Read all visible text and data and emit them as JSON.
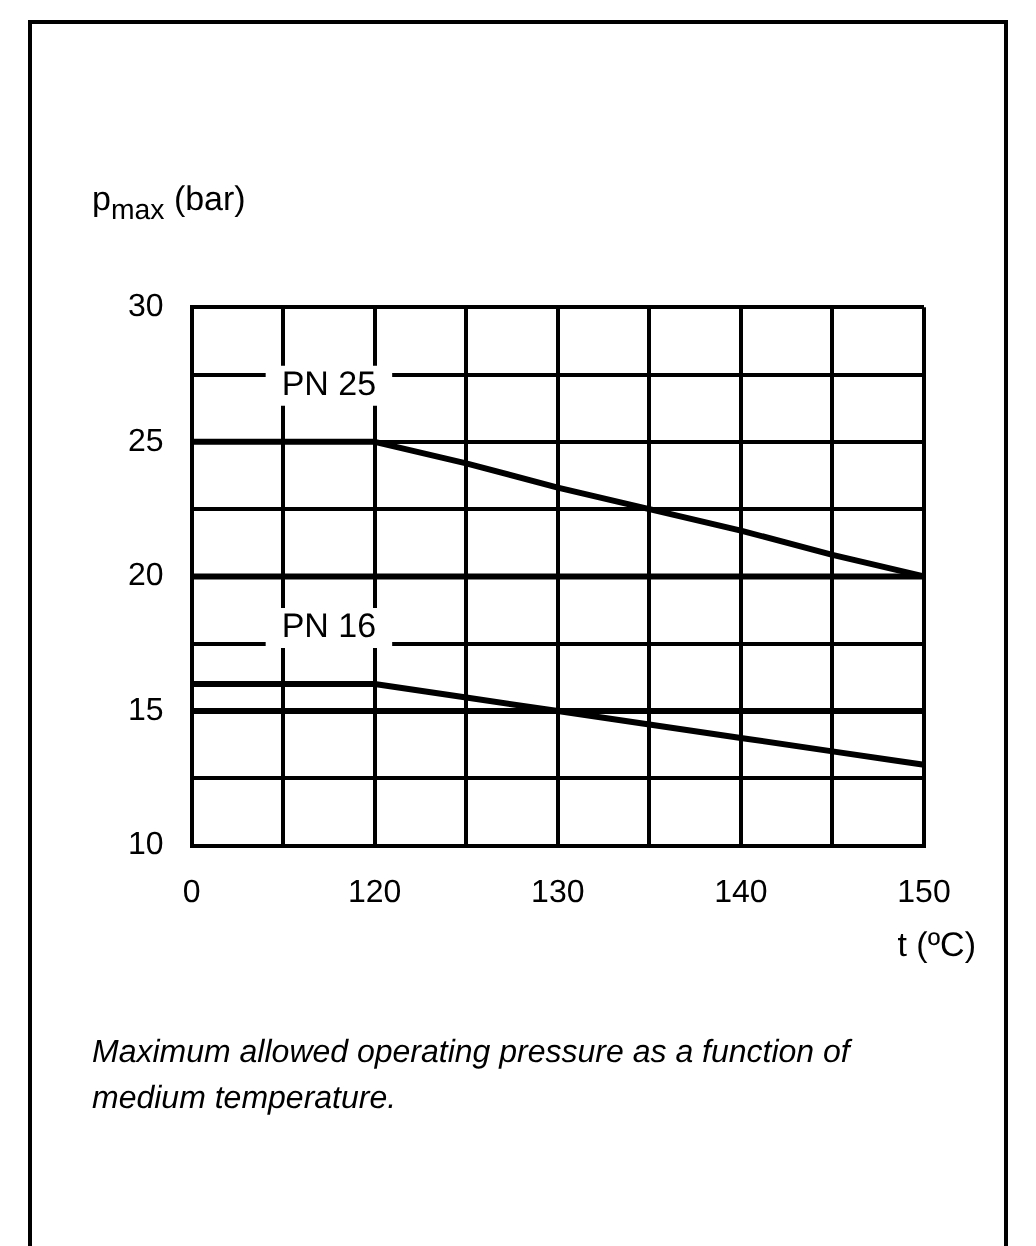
{
  "chart_data": {
    "type": "line",
    "ylabel": "p$_{max}$ (bar)",
    "xlabel": "t (ºC)",
    "categories": [
      "0",
      null,
      "120",
      null,
      "130",
      null,
      "140",
      null,
      "150"
    ],
    "series": [
      {
        "name": "PN 25",
        "color": "#000000",
        "values": [
          25,
          25,
          25,
          24.2,
          23.3,
          22.5,
          21.7,
          20.8,
          20
        ]
      },
      {
        "name": "PN 16",
        "color": "#000000",
        "values": [
          16,
          16,
          16,
          15.5,
          15,
          14.5,
          14,
          13.5,
          13
        ]
      },
      {
        "color": "#000000",
        "values": [
          20,
          20,
          20,
          20,
          20,
          20,
          20,
          20,
          20
        ]
      },
      {
        "color": "#000000",
        "values": [
          15,
          15,
          15,
          15,
          15,
          15,
          15,
          15,
          15
        ]
      }
    ],
    "ylim": [
      10,
      30
    ],
    "yticks": [
      10,
      {
        "value": 12.5,
        "label": null
      },
      15,
      {
        "value": 17.5,
        "label": null
      },
      20,
      {
        "value": 22.5,
        "label": null
      },
      25,
      {
        "value": 27.5,
        "label": null
      },
      30
    ],
    "grid": true,
    "legend": false,
    "marker": "none",
    "line_style": "solid",
    "annotations": [
      "Maximum allowed operating pressure as a function of medium temperature."
    ]
  }
}
